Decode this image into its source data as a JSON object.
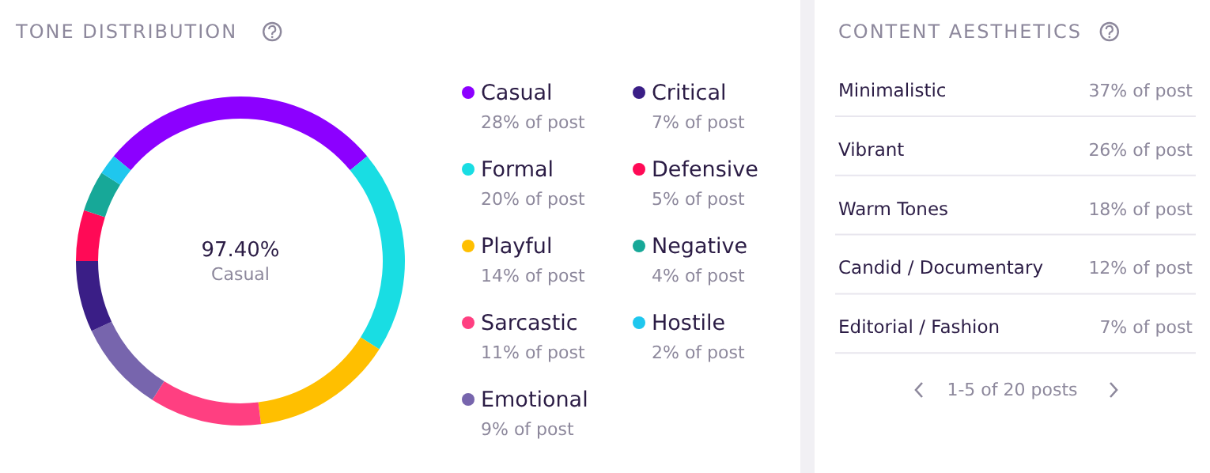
{
  "chart_data": [
    {
      "type": "donut",
      "title": "TONE DISTRIBUTION",
      "categories": [
        "Casual",
        "Formal",
        "Playful",
        "Sarcastic",
        "Emotional",
        "Critical",
        "Defensive",
        "Negative",
        "Hostile"
      ],
      "values": [
        28,
        20,
        14,
        11,
        9,
        7,
        5,
        4,
        2
      ],
      "colors": [
        "#8c00ff",
        "#19dde3",
        "#ffbf00",
        "#ff3f81",
        "#7765ad",
        "#3a1e86",
        "#ff0a56",
        "#17a898",
        "#1fc7ee"
      ],
      "value_labels": [
        "28% of post",
        "20% of post",
        "14% of post",
        "11% of post",
        "9% of post",
        "7% of post",
        "5% of post",
        "4% of post",
        "2% of post"
      ],
      "annotations": [
        "97.40%",
        "Casual"
      ],
      "legend": "right"
    },
    {
      "type": "other",
      "title": "CONTENT AESTHETICS",
      "categories": [
        "Minimalistic",
        "Vibrant",
        "Warm Tones",
        "Candid / Documentary",
        "Editorial / Fashion"
      ],
      "value_labels": [
        "37% of post",
        "26% of post",
        "18% of post",
        "12% of post",
        "7% of post"
      ],
      "annotations": [
        "1-5 of 20 posts"
      ]
    }
  ]
}
